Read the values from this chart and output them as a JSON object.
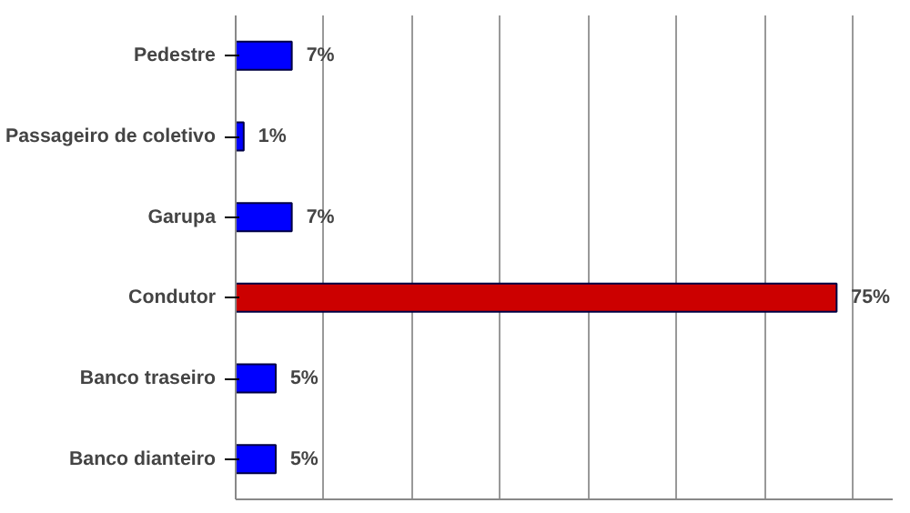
{
  "chart_data": {
    "type": "bar",
    "orientation": "horizontal",
    "categories": [
      "Pedestre",
      "Passageiro de coletivo",
      "Garupa",
      "Condutor",
      "Banco traseiro",
      "Banco dianteiro"
    ],
    "values": [
      7,
      1,
      7,
      75,
      5,
      5
    ],
    "colors": [
      "#0000ff",
      "#0000ff",
      "#0000ff",
      "#cc0000",
      "#0000ff",
      "#0000ff"
    ],
    "value_labels": [
      "7%",
      "1%",
      "7%",
      "75%",
      "5%",
      "5%"
    ],
    "xlim": [
      0,
      82
    ],
    "xticks": [
      {
        "value": 0,
        "label": null
      },
      {
        "value": 11,
        "label": null
      },
      {
        "value": 22,
        "label": null
      },
      {
        "value": 33,
        "label": null
      },
      {
        "value": 44,
        "label": null
      },
      {
        "value": 55,
        "label": null
      },
      {
        "value": 66,
        "label": null
      },
      {
        "value": 77,
        "label": null
      }
    ],
    "tick_labels": "y",
    "grid": "x"
  }
}
